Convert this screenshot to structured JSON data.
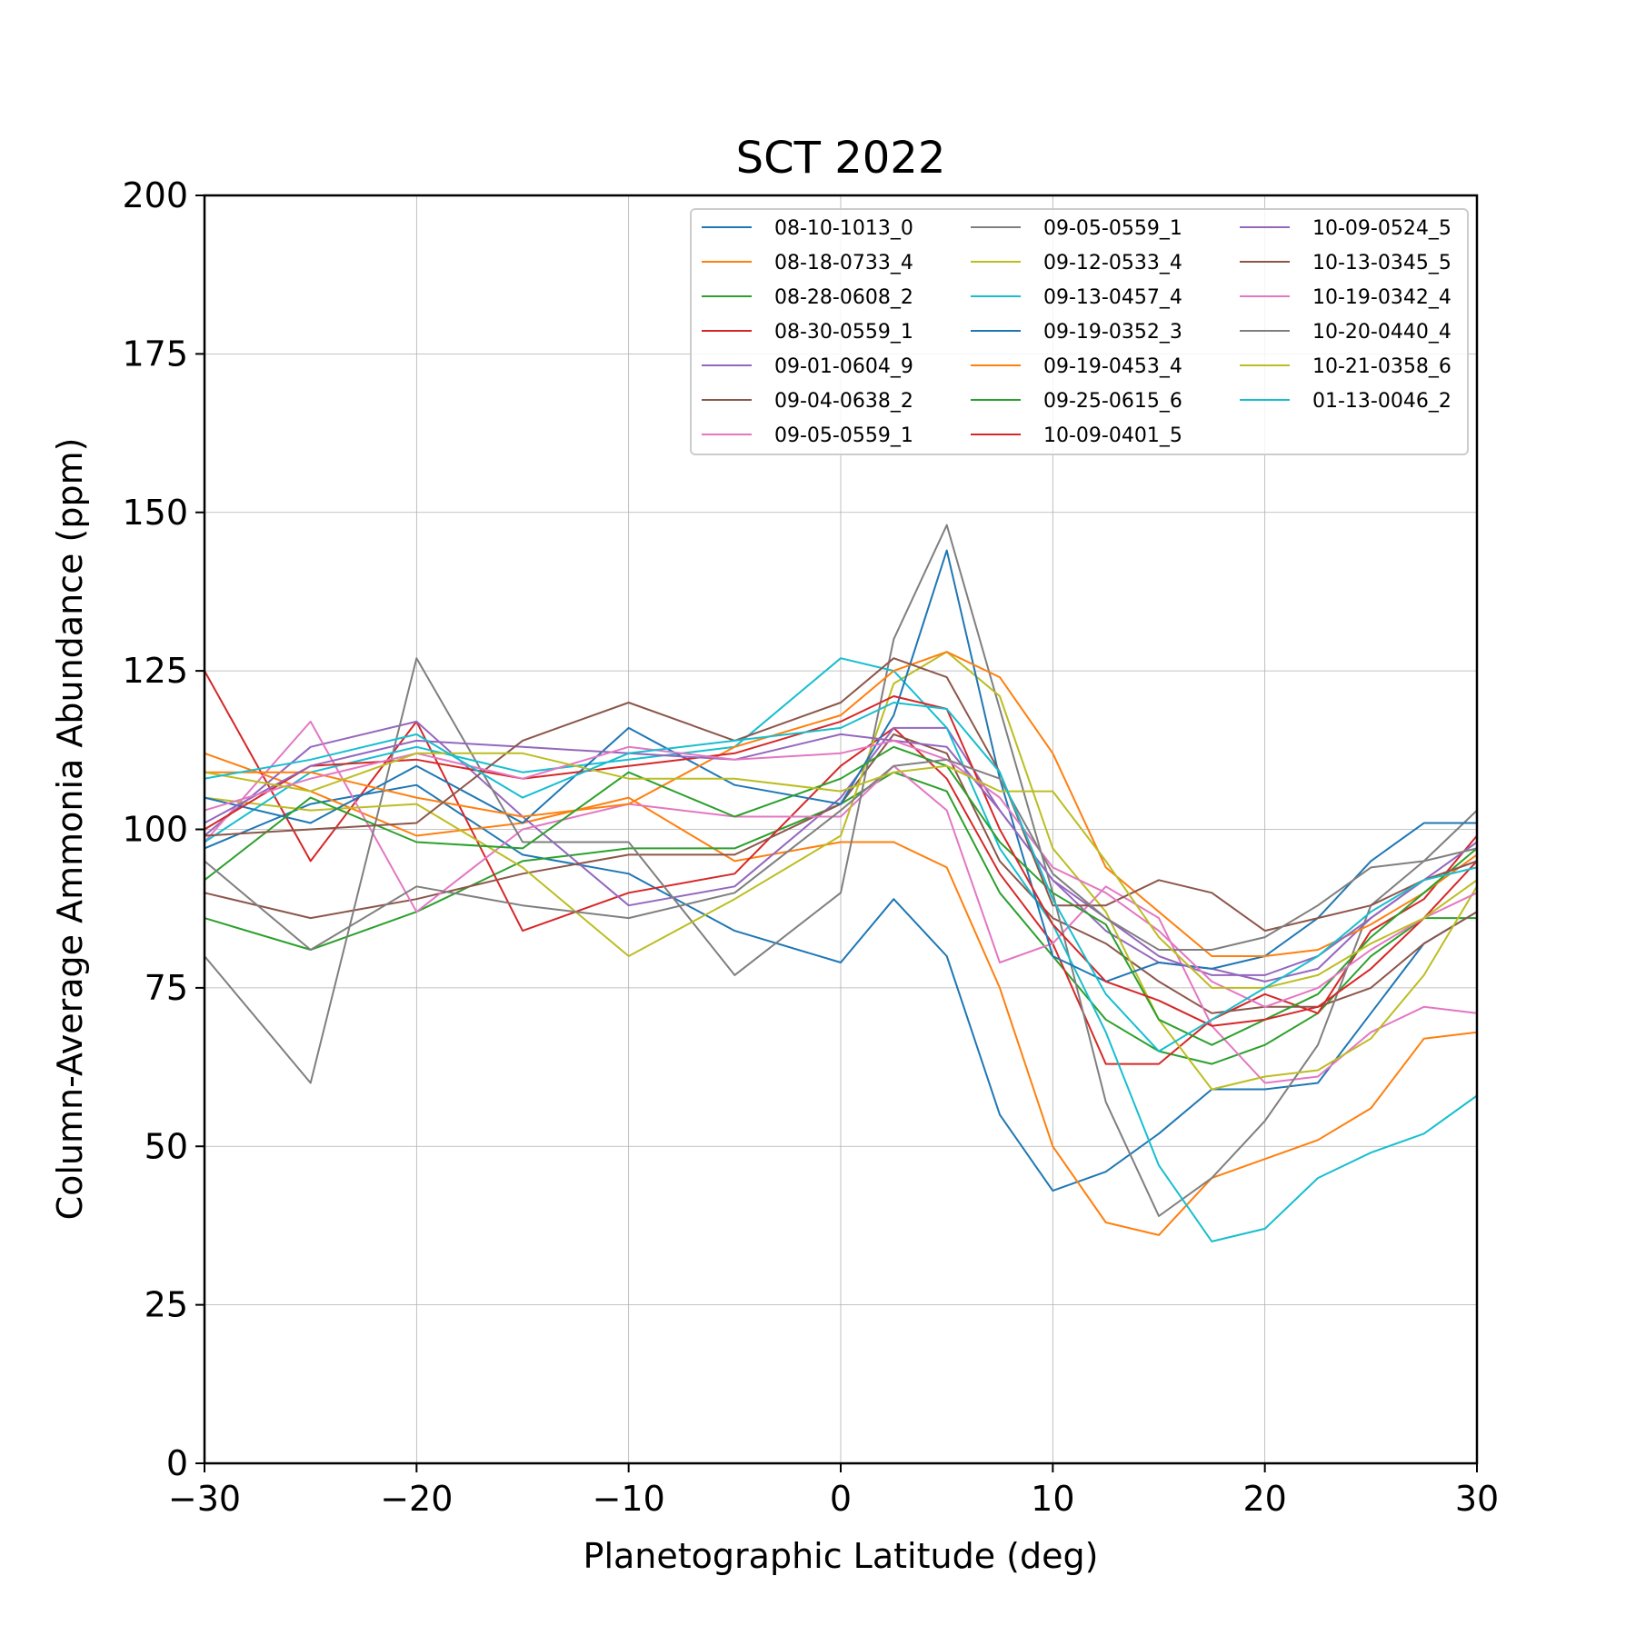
{
  "chart_data": {
    "type": "line",
    "title": "SCT 2022",
    "xlabel": "Planetographic Latitude (deg)",
    "ylabel": "Column-Average Ammonia Abundance (ppm)",
    "xlim": [
      -30,
      30
    ],
    "ylim": [
      0,
      200
    ],
    "xticks": [
      -30,
      -20,
      -10,
      0,
      10,
      20,
      30
    ],
    "yticks": [
      0,
      25,
      50,
      75,
      100,
      125,
      150,
      175,
      200
    ],
    "xtick_labels": [
      "−30",
      "−20",
      "−10",
      "0",
      "10",
      "20",
      "30"
    ],
    "ytick_labels": [
      "0",
      "25",
      "50",
      "75",
      "100",
      "125",
      "150",
      "175",
      "200"
    ],
    "grid": true,
    "legend_position": "upper-right",
    "legend_columns": 3,
    "x": [
      -30,
      -25,
      -20,
      -15,
      -10,
      -5,
      0,
      2.5,
      5,
      7.5,
      10,
      12.5,
      15,
      17.5,
      20,
      22.5,
      25,
      27.5,
      30
    ],
    "series": [
      {
        "name": "08-10-1013_0",
        "color": "#1f77b4",
        "values": [
          97,
          104,
          107,
          96,
          93,
          84,
          79,
          89,
          80,
          55,
          43,
          46,
          52,
          59,
          59,
          60,
          71,
          82,
          87
        ]
      },
      {
        "name": "08-18-0733_4",
        "color": "#ff7f0e",
        "values": [
          112,
          106,
          99,
          101,
          105,
          95,
          98,
          98,
          94,
          75,
          50,
          38,
          36,
          45,
          48,
          51,
          56,
          67,
          68
        ]
      },
      {
        "name": "08-28-0608_2",
        "color": "#2ca02c",
        "values": [
          86,
          81,
          87,
          95,
          97,
          97,
          104,
          109,
          106,
          90,
          80,
          70,
          65,
          63,
          66,
          71,
          80,
          86,
          86
        ]
      },
      {
        "name": "08-30-0559_1",
        "color": "#d62728",
        "values": [
          125,
          95,
          117,
          84,
          90,
          93,
          110,
          116,
          108,
          93,
          82,
          63,
          63,
          70,
          74,
          71,
          84,
          89,
          99
        ]
      },
      {
        "name": "09-01-0604_9",
        "color": "#9467bd",
        "values": [
          99,
          113,
          117,
          102,
          88,
          91,
          105,
          116,
          116,
          103,
          92,
          84,
          79,
          78,
          76,
          78,
          86,
          92,
          98
        ]
      },
      {
        "name": "09-04-0638_2",
        "color": "#8c564b",
        "values": [
          90,
          86,
          89,
          93,
          96,
          96,
          104,
          115,
          112,
          95,
          86,
          82,
          76,
          71,
          72,
          72,
          75,
          82,
          87
        ]
      },
      {
        "name": "09-05-0559_1",
        "color": "#e377c2",
        "values": [
          98,
          117,
          87,
          100,
          104,
          102,
          102,
          110,
          103,
          79,
          82,
          91,
          86,
          69,
          60,
          61,
          68,
          72,
          71
        ]
      },
      {
        "name": "09-05-0559_1",
        "color": "#7f7f7f",
        "values": [
          80,
          60,
          127,
          98,
          98,
          77,
          90,
          130,
          148,
          119,
          90,
          57,
          39,
          45,
          54,
          66,
          88,
          95,
          103
        ]
      },
      {
        "name": "09-12-0533_4",
        "color": "#bcbd22",
        "values": [
          105,
          103,
          104,
          94,
          80,
          89,
          99,
          123,
          128,
          121,
          97,
          87,
          70,
          59,
          61,
          62,
          67,
          77,
          91
        ]
      },
      {
        "name": "09-13-0457_4",
        "color": "#17becf",
        "values": [
          98,
          109,
          113,
          109,
          111,
          113,
          127,
          125,
          116,
          97,
          85,
          68,
          47,
          35,
          37,
          45,
          49,
          52,
          58
        ]
      },
      {
        "name": "09-19-0352_3",
        "color": "#1f77b4",
        "values": [
          105,
          101,
          110,
          101,
          116,
          107,
          104,
          118,
          144,
          108,
          80,
          76,
          79,
          78,
          80,
          86,
          95,
          101,
          101
        ]
      },
      {
        "name": "09-19-0453_4",
        "color": "#ff7f0e",
        "values": [
          109,
          109,
          105,
          102,
          104,
          113,
          118,
          125,
          128,
          124,
          112,
          94,
          87,
          80,
          80,
          81,
          85,
          90,
          96
        ]
      },
      {
        "name": "09-25-0615_6",
        "color": "#2ca02c",
        "values": [
          92,
          105,
          98,
          97,
          109,
          102,
          108,
          113,
          110,
          98,
          90,
          85,
          70,
          66,
          70,
          74,
          83,
          90,
          97
        ]
      },
      {
        "name": "10-09-0401_5",
        "color": "#d62728",
        "values": [
          100,
          110,
          111,
          108,
          110,
          112,
          117,
          121,
          119,
          100,
          85,
          76,
          73,
          69,
          70,
          72,
          78,
          86,
          95
        ]
      },
      {
        "name": "10-09-0524_5",
        "color": "#9467bd",
        "values": [
          101,
          110,
          114,
          113,
          112,
          111,
          115,
          114,
          113,
          103,
          92,
          86,
          80,
          77,
          77,
          80,
          86,
          92,
          95
        ]
      },
      {
        "name": "10-13-0345_5",
        "color": "#8c564b",
        "values": [
          99,
          100,
          101,
          114,
          120,
          114,
          120,
          127,
          124,
          109,
          88,
          88,
          92,
          90,
          84,
          86,
          88,
          92,
          95
        ]
      },
      {
        "name": "10-19-0342_4",
        "color": "#e377c2",
        "values": [
          103,
          108,
          112,
          108,
          113,
          111,
          112,
          114,
          111,
          105,
          94,
          90,
          84,
          76,
          72,
          75,
          81,
          86,
          90
        ]
      },
      {
        "name": "10-20-0440_4",
        "color": "#7f7f7f",
        "values": [
          95,
          81,
          91,
          88,
          86,
          90,
          103,
          110,
          111,
          108,
          93,
          86,
          81,
          81,
          83,
          88,
          94,
          95,
          97
        ]
      },
      {
        "name": "10-21-0358_6",
        "color": "#bcbd22",
        "values": [
          109,
          106,
          112,
          112,
          108,
          108,
          106,
          109,
          110,
          106,
          106,
          95,
          83,
          75,
          75,
          77,
          82,
          86,
          92
        ]
      },
      {
        "name": "01-13-0046_2",
        "color": "#17becf",
        "values": [
          108,
          111,
          115,
          105,
          112,
          114,
          116,
          120,
          119,
          109,
          89,
          74,
          65,
          70,
          75,
          80,
          87,
          92,
          94
        ]
      }
    ]
  }
}
